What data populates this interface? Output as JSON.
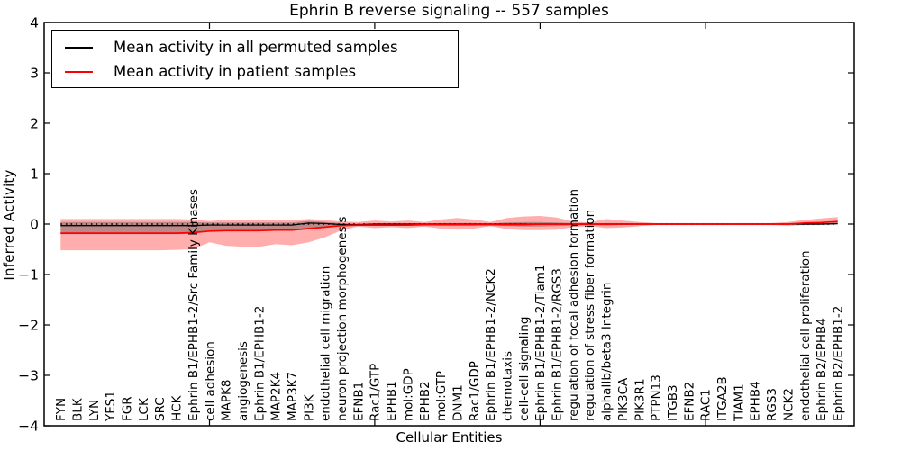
{
  "chart": {
    "title": "Ephrin B reverse signaling -- 557 samples",
    "x_axis_label": "Cellular Entities",
    "y_axis_label": "Inferred Activity",
    "y_tick_labels": [
      "4",
      "3",
      "2",
      "1",
      "0",
      "−1",
      "−2",
      "−3",
      "−4"
    ]
  },
  "legend": {
    "items": [
      {
        "label": "Mean activity in all permuted samples",
        "color": "#000000"
      },
      {
        "label": "Mean activity in patient samples",
        "color": "#ff0000"
      }
    ]
  },
  "colors": {
    "permuted_line": "#000000",
    "patient_line": "#ff0000",
    "patient_band": "rgba(255,0,0,0.32)",
    "permuted_band": "rgba(80,80,80,0.38)",
    "frame": "#000000"
  },
  "chart_data": {
    "type": "line",
    "title": "Ephrin B reverse signaling -- 557 samples",
    "xlabel": "Cellular Entities",
    "ylabel": "Inferred Activity",
    "ylim": [
      -4,
      4
    ],
    "y_ticks": [
      4,
      3,
      2,
      1,
      0,
      -1,
      -2,
      -3,
      -4
    ],
    "grid": false,
    "legend_position": "upper left",
    "reference_line": {
      "y": 0,
      "style": "dotted",
      "color": "#000000"
    },
    "x_major_ticks_at_data_index": [
      9,
      19,
      29,
      39
    ],
    "categories": [
      "FYN",
      "BLK",
      "LYN",
      "YES1",
      "FGR",
      "LCK",
      "SRC",
      "HCK",
      "Ephrin B1/EPHB1-2/Src Family Kinases",
      "cell adhesion",
      "MAPK8",
      "angiogenesis",
      "Ephrin B1/EPHB1-2",
      "MAP2K4",
      "MAP3K7",
      "PI3K",
      "endothelial cell migration",
      "neuron projection morphogenesis",
      "EFNB1",
      "Rac1/GTP",
      "EPHB1",
      "mol:GDP",
      "EPHB2",
      "mol:GTP",
      "DNM1",
      "Rac1/GDP",
      "Ephrin B1/EPHB1-2/NCK2",
      "chemotaxis",
      "cell-cell signaling",
      "Ephrin B1/EPHB1-2/Tiam1",
      "Ephrin B1/EPHB1-2/RGS3",
      "regulation of focal adhesion formation",
      "regulation of stress fiber formation",
      "alphaIIb/beta3 Integrin",
      "PIK3CA",
      "PIK3R1",
      "PTPN13",
      "ITGB3",
      "EFNB2",
      "RAC1",
      "ITGA2B",
      "TIAM1",
      "EPHB4",
      "RGS3",
      "NCK2",
      "endothelial cell proliferation",
      "Ephrin B2/EPHB4",
      "Ephrin B2/EPHB1-2"
    ],
    "series": [
      {
        "name": "Mean activity in all permuted samples",
        "color": "#000000",
        "values": [
          -0.03,
          -0.03,
          -0.03,
          -0.03,
          -0.03,
          -0.03,
          -0.03,
          -0.03,
          -0.03,
          -0.02,
          -0.02,
          -0.02,
          -0.02,
          -0.02,
          -0.02,
          0.02,
          0.01,
          -0.01,
          -0.01,
          0,
          0,
          0,
          0,
          0,
          0,
          0,
          0,
          0,
          0,
          0,
          0,
          0,
          0,
          0,
          0,
          0,
          0,
          0,
          0,
          0,
          0,
          0,
          0,
          0,
          0,
          0,
          0,
          0.01
        ],
        "lower": [
          -0.2,
          -0.2,
          -0.2,
          -0.2,
          -0.2,
          -0.2,
          -0.2,
          -0.2,
          -0.19,
          -0.13,
          -0.14,
          -0.14,
          -0.14,
          -0.13,
          -0.13,
          -0.1,
          -0.07,
          -0.04,
          -0.02,
          -0.02,
          -0.02,
          -0.02,
          -0.02,
          -0.03,
          -0.03,
          -0.03,
          -0.02,
          -0.04,
          -0.05,
          -0.05,
          -0.04,
          -0.03,
          -0.02,
          -0.03,
          -0.02,
          -0.01,
          -0.01,
          -0.01,
          -0.01,
          -0.01,
          -0.01,
          -0.01,
          -0.01,
          -0.01,
          -0.01,
          -0.02,
          -0.02,
          -0.02
        ],
        "upper": [
          0.04,
          0.04,
          0.04,
          0.04,
          0.04,
          0.04,
          0.04,
          0.04,
          0.04,
          0.03,
          0.03,
          0.03,
          0.03,
          0.03,
          0.03,
          0.06,
          0.04,
          0.02,
          0.01,
          0.01,
          0.01,
          0.01,
          0.01,
          0.02,
          0.02,
          0.02,
          0.01,
          0.03,
          0.04,
          0.04,
          0.03,
          0.02,
          0.01,
          0.02,
          0.02,
          0.01,
          0.01,
          0.01,
          0.01,
          0.01,
          0.01,
          0.01,
          0.01,
          0.01,
          0.01,
          0.02,
          0.02,
          0.02
        ]
      },
      {
        "name": "Mean activity in patient samples",
        "color": "#ff0000",
        "values": [
          -0.18,
          -0.18,
          -0.18,
          -0.18,
          -0.18,
          -0.18,
          -0.18,
          -0.18,
          -0.17,
          -0.14,
          -0.13,
          -0.13,
          -0.13,
          -0.12,
          -0.12,
          -0.09,
          -0.06,
          -0.03,
          -0.02,
          -0.02,
          -0.02,
          -0.02,
          -0.01,
          -0.01,
          -0.01,
          -0.01,
          -0.01,
          -0.01,
          -0.01,
          0,
          0,
          0,
          0,
          0,
          0,
          0,
          0,
          0,
          0,
          0,
          0,
          0,
          0,
          0,
          0,
          0.02,
          0.03,
          0.05
        ],
        "lower": [
          -0.52,
          -0.52,
          -0.52,
          -0.52,
          -0.52,
          -0.52,
          -0.52,
          -0.51,
          -0.5,
          -0.36,
          -0.43,
          -0.45,
          -0.45,
          -0.4,
          -0.42,
          -0.36,
          -0.26,
          -0.12,
          -0.05,
          -0.08,
          -0.06,
          -0.08,
          -0.05,
          -0.09,
          -0.11,
          -0.09,
          -0.04,
          -0.1,
          -0.12,
          -0.12,
          -0.11,
          -0.06,
          -0.04,
          -0.08,
          -0.07,
          -0.04,
          -0.02,
          -0.02,
          -0.02,
          -0.02,
          -0.02,
          -0.02,
          -0.02,
          -0.02,
          -0.03,
          -0.02,
          -0.01,
          0
        ],
        "upper": [
          0.1,
          0.1,
          0.1,
          0.1,
          0.1,
          0.1,
          0.1,
          0.1,
          0.09,
          0.06,
          0.08,
          0.09,
          0.09,
          0.08,
          0.08,
          0.1,
          0.08,
          0.05,
          0.04,
          0.07,
          0.05,
          0.07,
          0.04,
          0.09,
          0.12,
          0.09,
          0.04,
          0.12,
          0.15,
          0.16,
          0.13,
          0.05,
          0.03,
          0.1,
          0.07,
          0.04,
          0.02,
          0.02,
          0.02,
          0.02,
          0.02,
          0.02,
          0.02,
          0.02,
          0.04,
          0.08,
          0.11,
          0.14
        ]
      }
    ]
  }
}
